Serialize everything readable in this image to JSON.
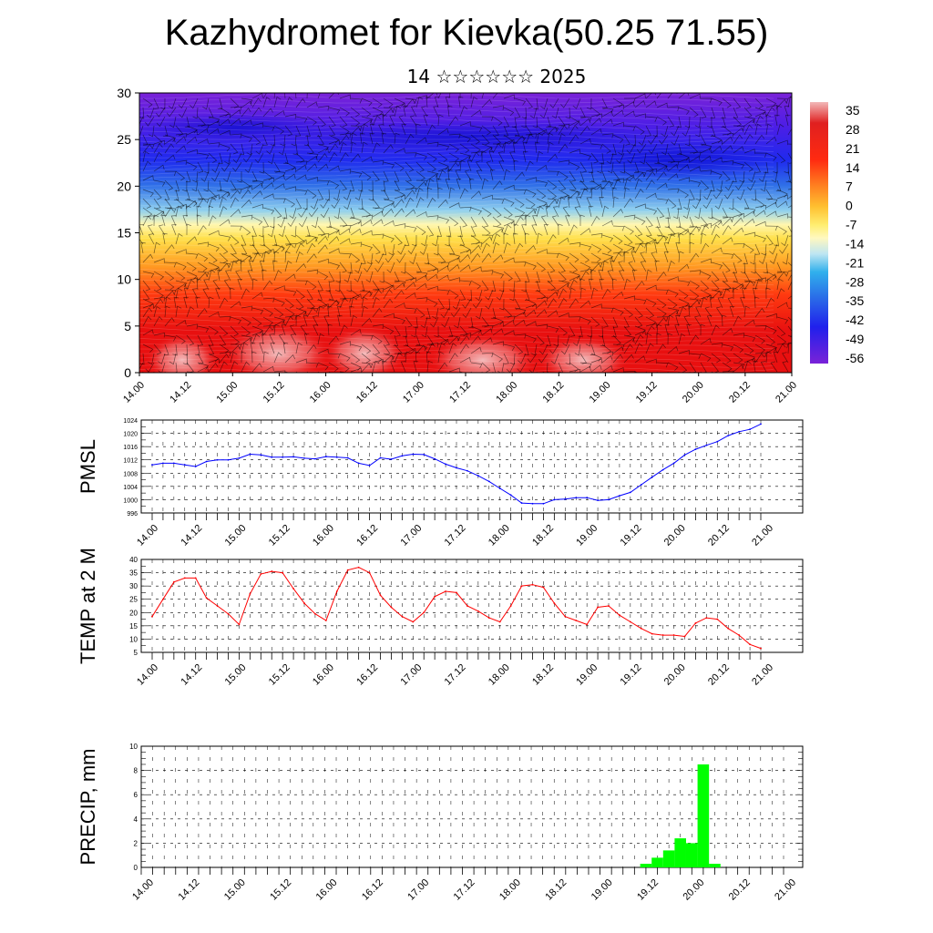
{
  "title": "Kazhydromet for Kievka(50.25 71.55)",
  "subtitle": "14 ☆☆☆☆☆☆ 2025",
  "time_labels": [
    "14.00",
    "14.12",
    "15.00",
    "15.12",
    "16.00",
    "16.12",
    "17.00",
    "17.12",
    "18.00",
    "18.12",
    "19.00",
    "19.12",
    "20.00",
    "20.12",
    "21.00"
  ],
  "chart_data": [
    {
      "type": "heatmap",
      "title": "",
      "xlabel": "",
      "ylabel": "",
      "ylim": [
        0,
        30
      ],
      "yticks": [
        0,
        5,
        10,
        15,
        20,
        25,
        30
      ],
      "colorbar": {
        "labels": [
          "35",
          "28",
          "21",
          "14",
          "7",
          "0",
          "-7",
          "-14",
          "-21",
          "-28",
          "-35",
          "-42",
          "-49",
          "-56"
        ],
        "min": -63,
        "max": 42
      },
      "overlay": "wind barbs"
    },
    {
      "type": "line",
      "ylabel": "PMSL",
      "ylim": [
        996,
        1024
      ],
      "yticks": [
        996,
        1000,
        1004,
        1008,
        1012,
        1016,
        1020,
        1024
      ],
      "color": "#0000ff",
      "values": [
        1010.5,
        1011,
        1011,
        1010.5,
        1010,
        1011.5,
        1012,
        1012,
        1012.5,
        1013.7,
        1013.5,
        1012.8,
        1012.8,
        1012.9,
        1012.5,
        1012.3,
        1013,
        1012.8,
        1012.6,
        1011,
        1010.3,
        1012.6,
        1012.2,
        1013.2,
        1013.7,
        1013.6,
        1012.3,
        1010.7,
        1009.6,
        1008.7,
        1007.2,
        1005.5,
        1003.4,
        1001.4,
        999,
        998.8,
        998.8,
        1000,
        1000.2,
        1000.6,
        1000.6,
        999.8,
        1000,
        1001.2,
        1002.2,
        1004.5,
        1006.8,
        1009,
        1011,
        1013.5,
        1015.2,
        1016.4,
        1017.5,
        1019.3,
        1020.5,
        1021.2,
        1022.8
      ]
    },
    {
      "type": "line",
      "ylabel": "TEMP at 2 M",
      "ylim": [
        5,
        40
      ],
      "yticks": [
        5,
        10,
        15,
        20,
        25,
        30,
        35,
        40
      ],
      "color": "#ff0000",
      "values": [
        18.5,
        25,
        31.5,
        33,
        33,
        25.5,
        22.5,
        19.5,
        15.5,
        27,
        34.5,
        35.5,
        35,
        29,
        23.5,
        19.5,
        17,
        28,
        36,
        37,
        35,
        26.5,
        22,
        18.5,
        16.5,
        20,
        26,
        28,
        27.5,
        22.5,
        20.5,
        18,
        16.5,
        22.5,
        30,
        30.5,
        29.5,
        23.5,
        18.5,
        17,
        15.5,
        22,
        22.5,
        19,
        16.5,
        14,
        12,
        11.5,
        11.5,
        11,
        16,
        18,
        17.5,
        14,
        11.5,
        8,
        6.5
      ]
    },
    {
      "type": "bar",
      "ylabel": "PRECIP, mm",
      "ylim": [
        0,
        10
      ],
      "yticks": [
        0,
        2,
        4,
        6,
        8,
        10
      ],
      "color": "#00ff00",
      "values": [
        0,
        0,
        0,
        0,
        0,
        0,
        0,
        0,
        0,
        0,
        0,
        0,
        0,
        0,
        0,
        0,
        0,
        0,
        0,
        0,
        0,
        0,
        0,
        0,
        0,
        0,
        0,
        0,
        0,
        0,
        0,
        0,
        0,
        0,
        0,
        0,
        0,
        0,
        0,
        0,
        0,
        0,
        0,
        0,
        0.3,
        0.8,
        1.4,
        2.4,
        2,
        8.5,
        0.3,
        0,
        0,
        0,
        0,
        0,
        0
      ]
    }
  ]
}
